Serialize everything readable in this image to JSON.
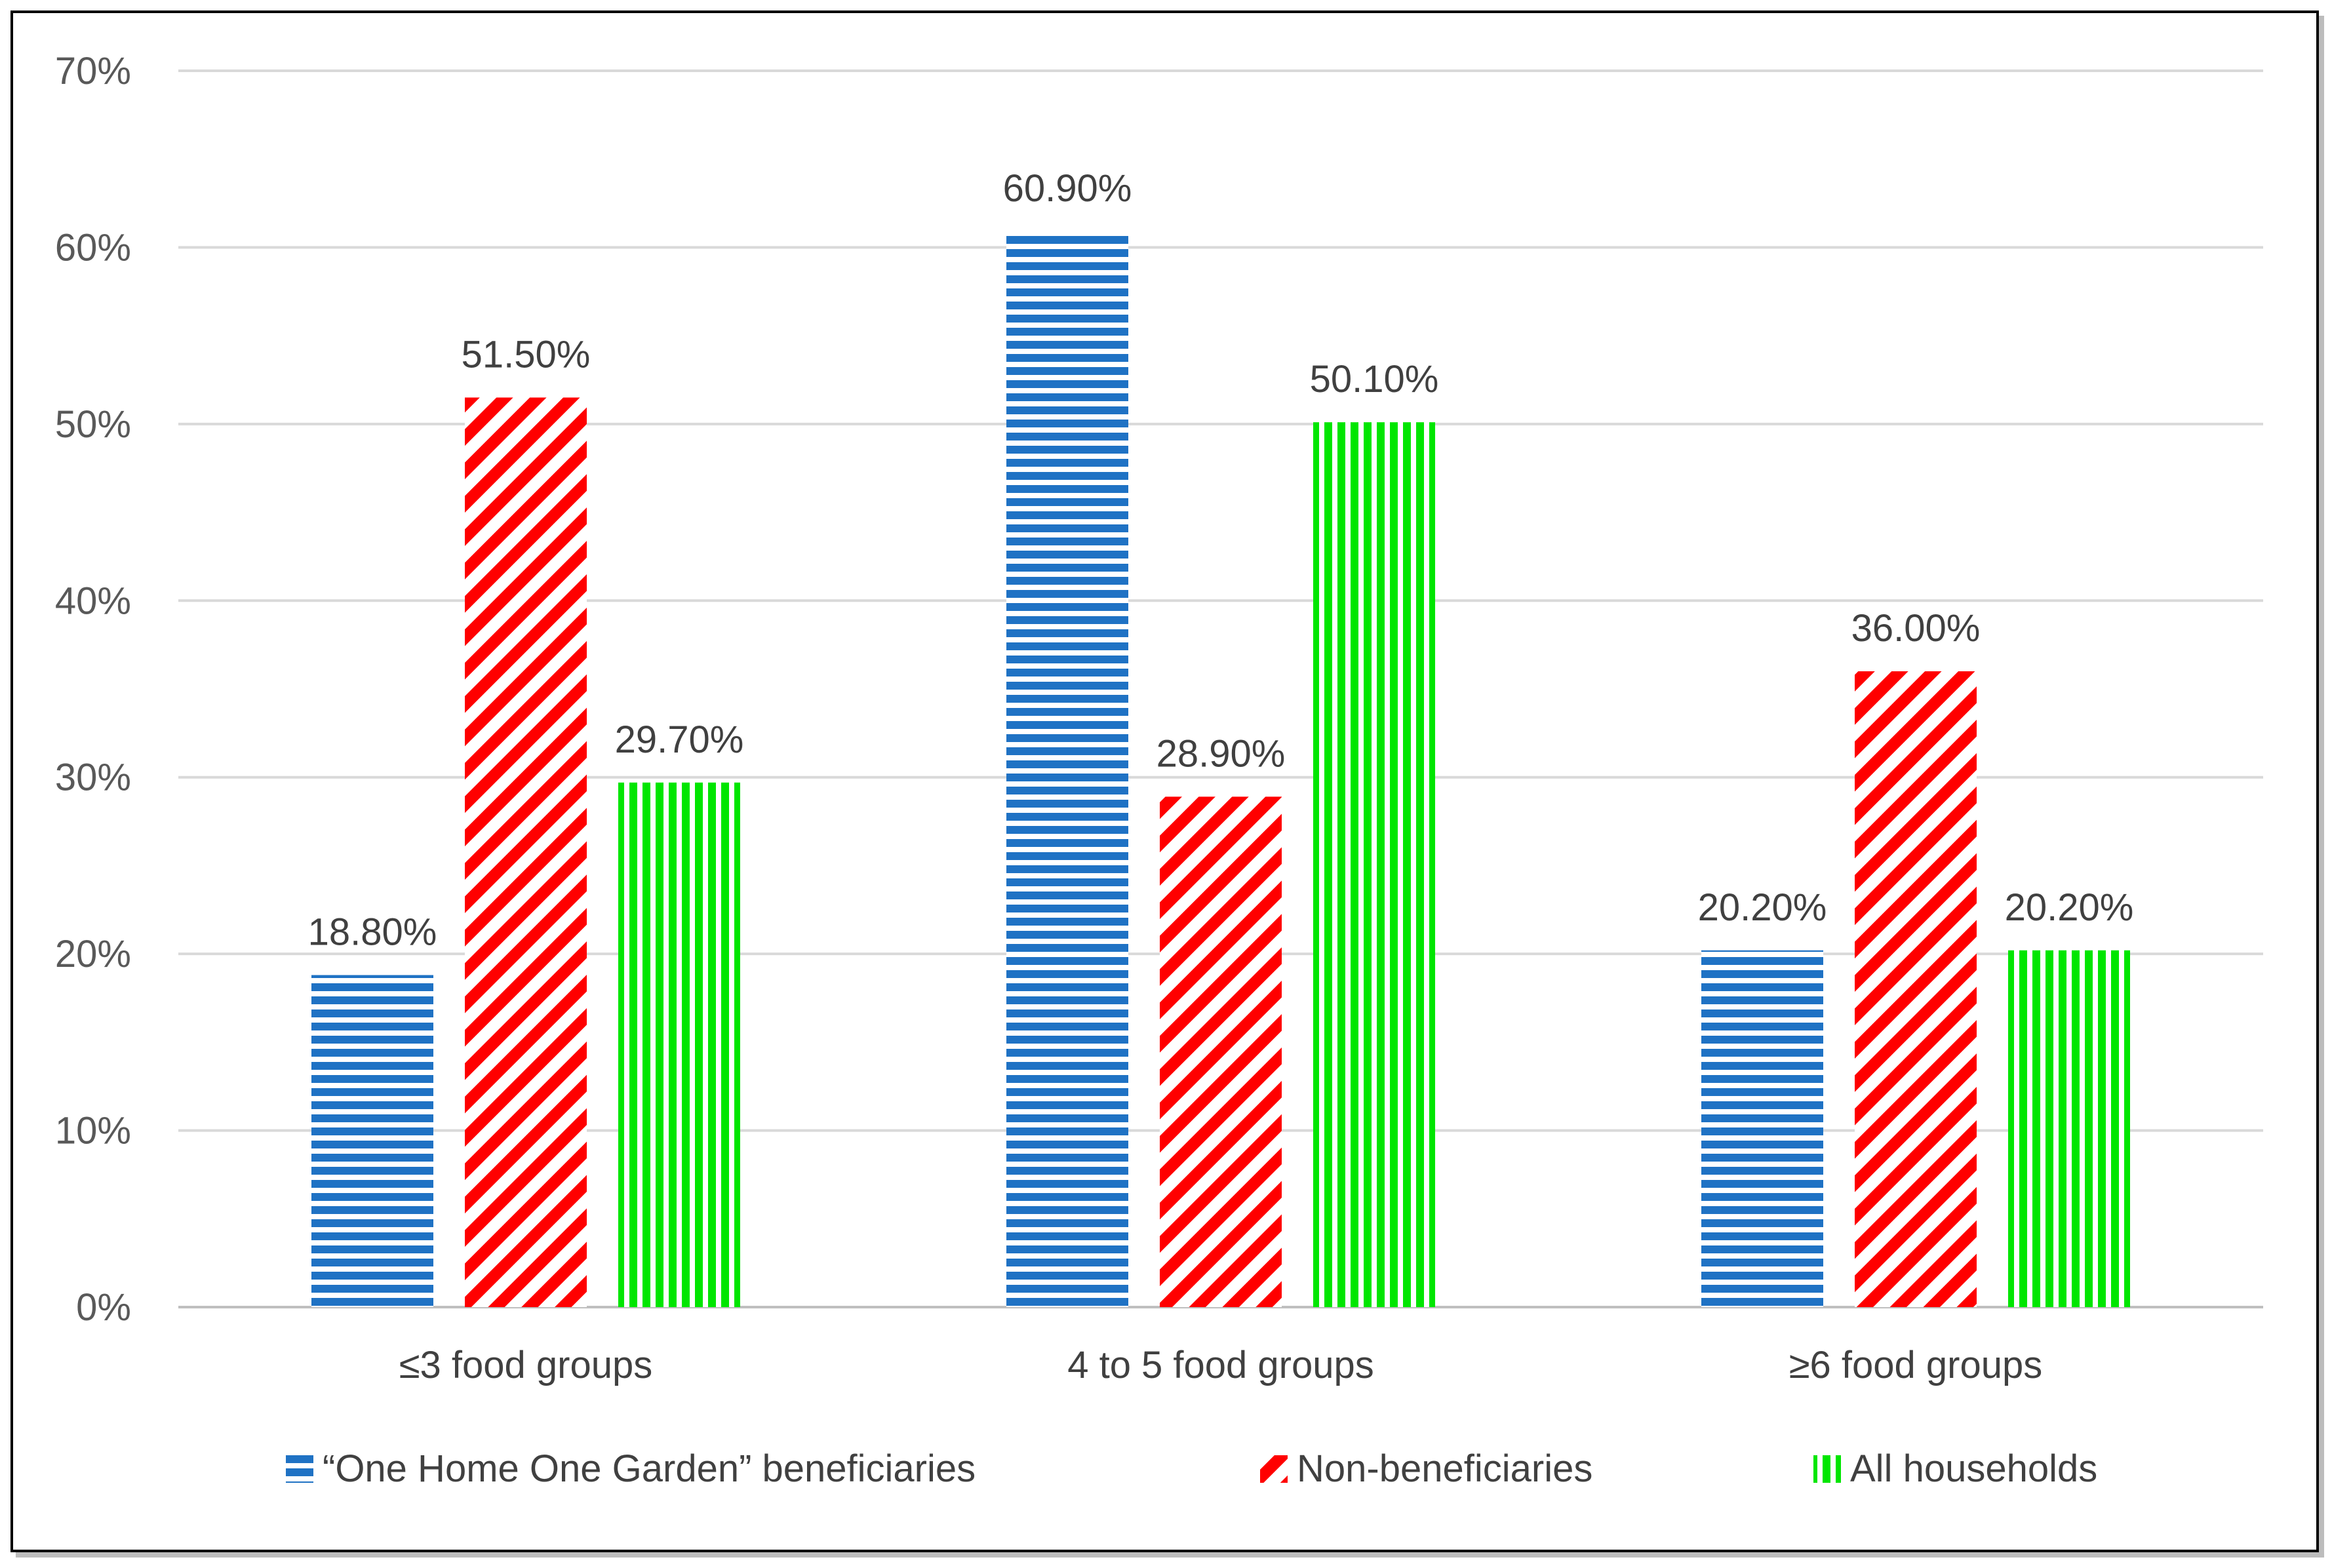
{
  "chart_data": {
    "type": "bar",
    "categories": [
      "≤3 food groups",
      "4 to 5 food groups",
      "≥6 food groups"
    ],
    "series": [
      {
        "name": "“One Home One Garden” beneficiaries",
        "values": [
          18.8,
          60.9,
          20.2
        ],
        "labels": [
          "18.80%",
          "60.90%",
          "20.20%"
        ],
        "color": "#1f72c4",
        "pattern": "horizontal-stripes"
      },
      {
        "name": "Non-beneficiaries",
        "values": [
          51.5,
          28.9,
          36.0
        ],
        "labels": [
          "51.50%",
          "28.90%",
          "36.00%"
        ],
        "color": "#ff0000",
        "pattern": "diagonal-stripes"
      },
      {
        "name": "All households",
        "values": [
          29.7,
          50.1,
          20.2
        ],
        "labels": [
          "29.70%",
          "50.10%",
          "20.20%"
        ],
        "color": "#00e600",
        "pattern": "vertical-stripes"
      }
    ],
    "y_ticks": [
      "0%",
      "10%",
      "20%",
      "30%",
      "40%",
      "50%",
      "60%",
      "70%"
    ],
    "ylim": [
      0,
      70
    ],
    "grid": true,
    "legend_position": "bottom"
  }
}
